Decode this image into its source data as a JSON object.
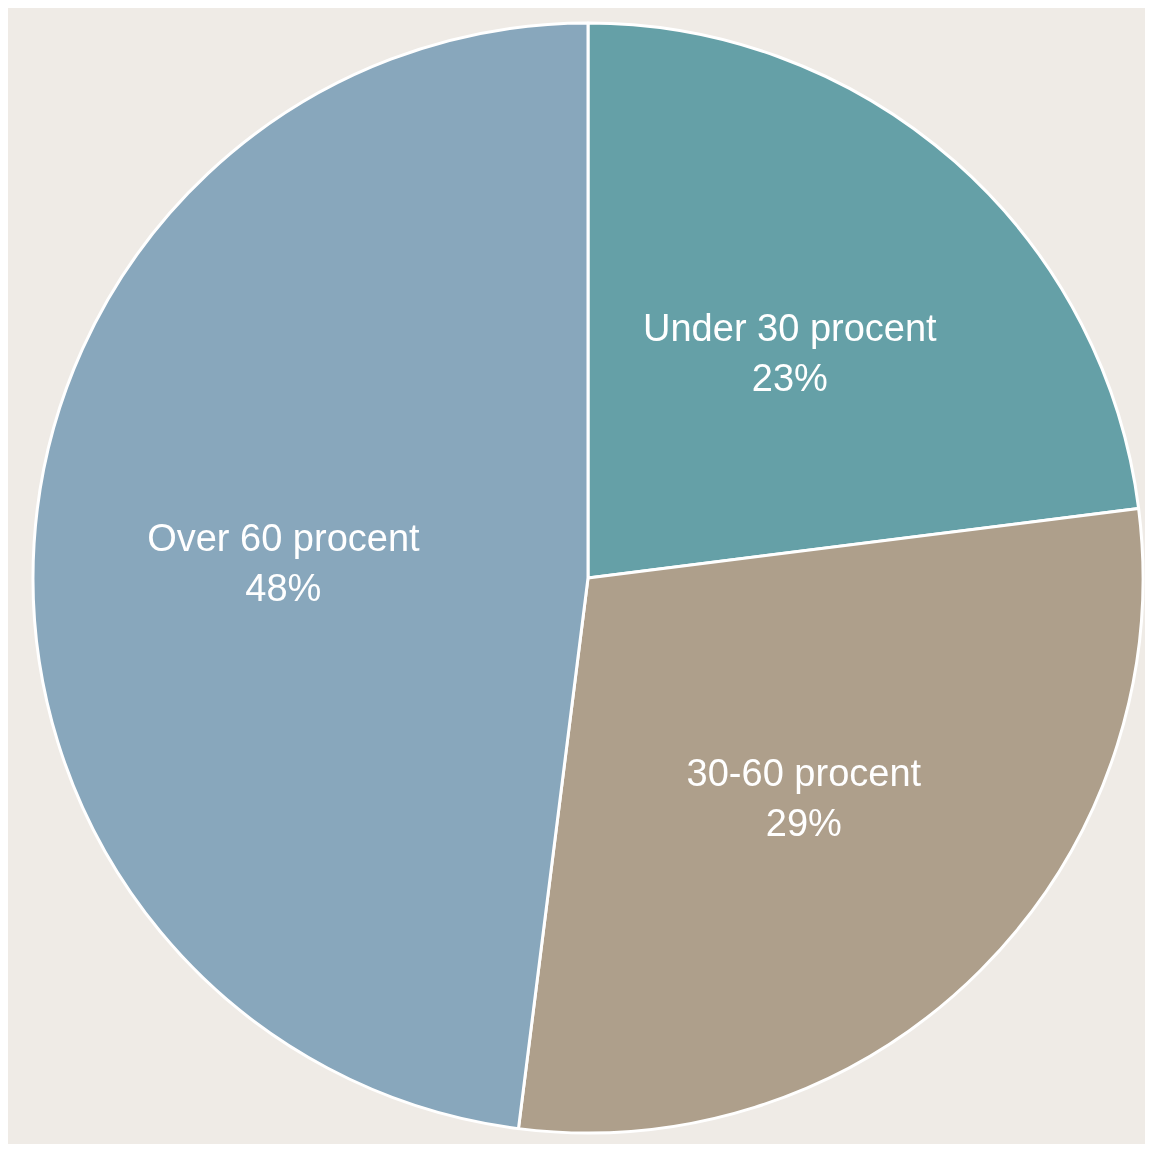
{
  "chart_data": {
    "type": "pie",
    "categories": [
      "Under 30 procent",
      "30-60 procent",
      "Over 60 procent"
    ],
    "values": [
      23,
      29,
      48
    ],
    "colors": [
      "#65a0a7",
      "#ae9f8b",
      "#88a7bc"
    ],
    "value_labels": [
      "23%",
      "29%",
      "48%"
    ],
    "legend": false
  }
}
